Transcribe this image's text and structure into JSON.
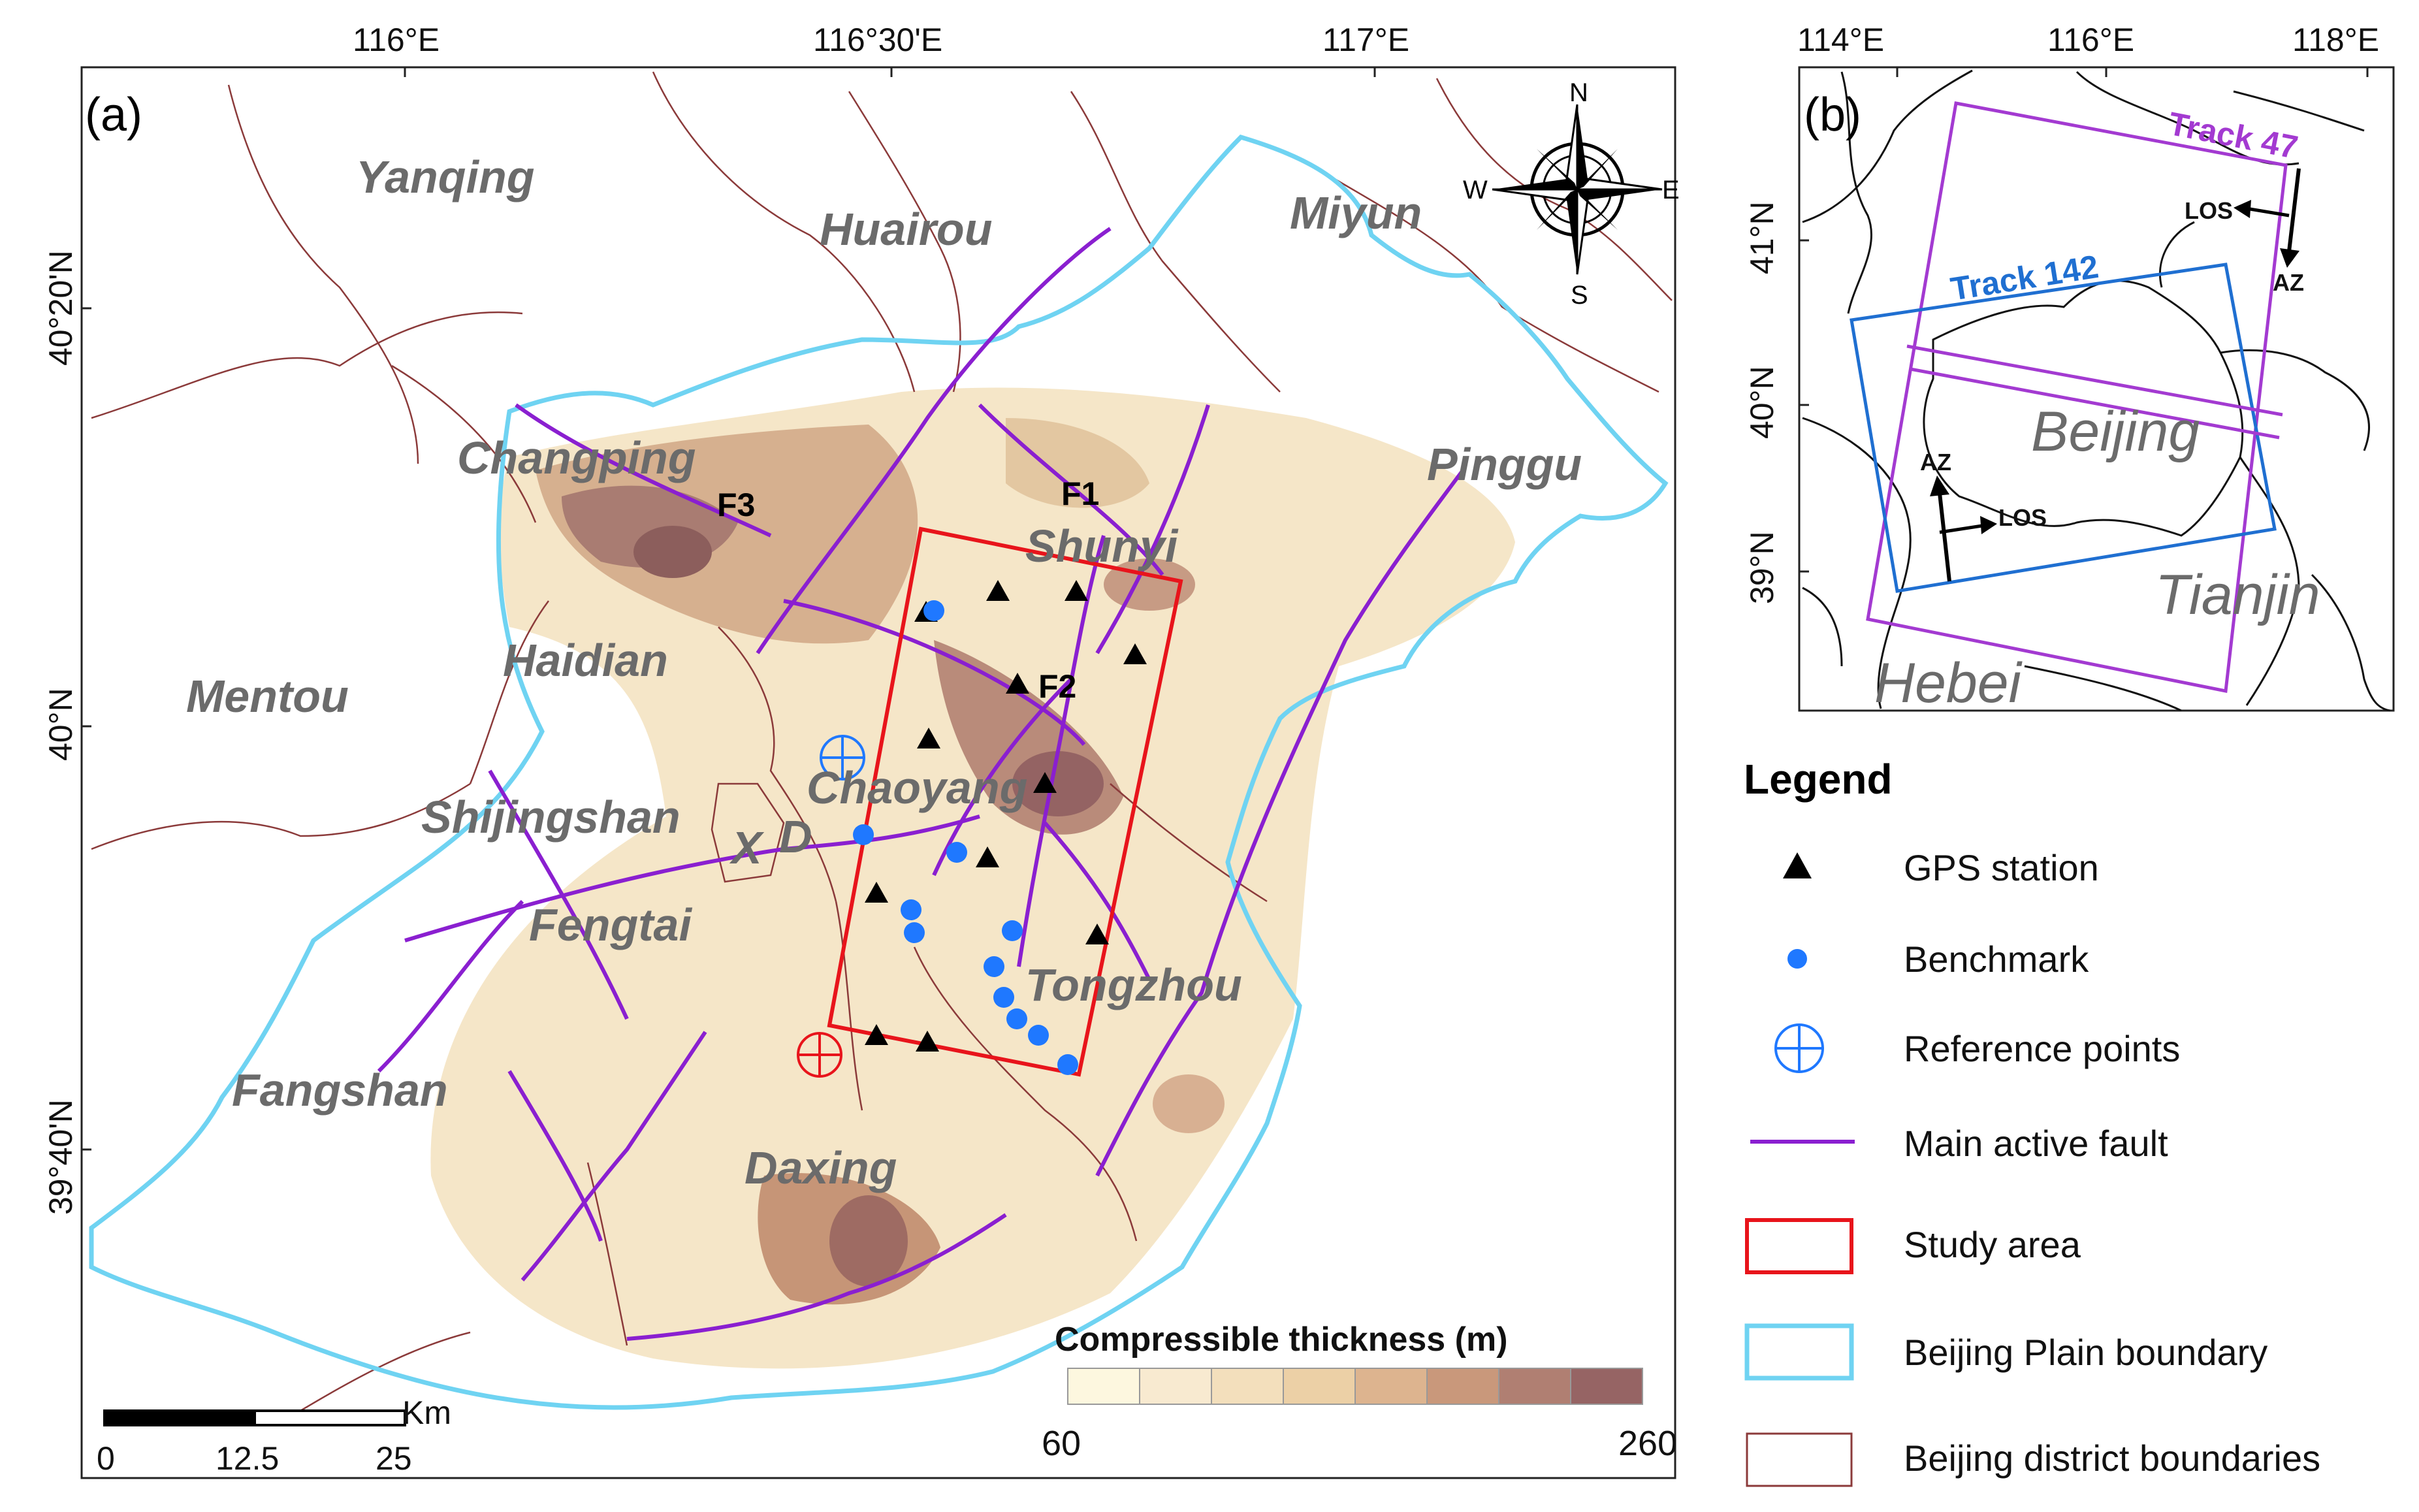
{
  "panel_a": {
    "label": "(a)",
    "lon_ticks": [
      "116°E",
      "116°30'E",
      "117°E"
    ],
    "lat_ticks": [
      "40°20'N",
      "40°N",
      "39°40'N"
    ],
    "districts": [
      "Yanqing",
      "Huairou",
      "Miyun",
      "Changping",
      "Pinggu",
      "Shunyi",
      "Haidian",
      "Mentou",
      "Chaoyang",
      "Shijingshan",
      "X",
      "D",
      "Fengtai",
      "Tongzhou",
      "Fangshan",
      "Daxing"
    ],
    "faults": [
      "F1",
      "F2",
      "F3"
    ],
    "compass": {
      "n": "N",
      "s": "S",
      "e": "E",
      "w": "W"
    },
    "scale": {
      "unit": "Km",
      "ticks": [
        "0",
        "12.5",
        "25"
      ]
    },
    "colorbar": {
      "title": "Compressible thickness (m)",
      "min": "60",
      "max": "260",
      "colors": [
        "#fdf7df",
        "#f8ead0",
        "#f3dfbc",
        "#ecd0a6",
        "#ddb48f",
        "#c9987b",
        "#b07f72",
        "#966464"
      ]
    }
  },
  "panel_b": {
    "label": "(b)",
    "lon_ticks": [
      "114°E",
      "116°E",
      "118°E"
    ],
    "lat_ticks": [
      "41°N",
      "40°N",
      "39°N"
    ],
    "regions": [
      "Beijing",
      "Tianjin",
      "Hebei"
    ],
    "track47": {
      "label": "Track 47",
      "los": "LOS",
      "az": "AZ"
    },
    "track142": {
      "label": "Track 142",
      "los": "LOS",
      "az": "AZ"
    }
  },
  "legend": {
    "title": "Legend",
    "items": [
      "GPS station",
      "Benchmark",
      "Reference points",
      "Main active fault",
      "Study area",
      "Beijing Plain boundary",
      "Beijing district boundaries"
    ]
  },
  "colors": {
    "fault": "#8a1fd0",
    "study_area": "#e8141b",
    "plain_boundary": "#6fd3f2",
    "district_boundary": "#8b3a3a",
    "benchmark": "#1f78ff",
    "reference": "#1f78ff"
  }
}
